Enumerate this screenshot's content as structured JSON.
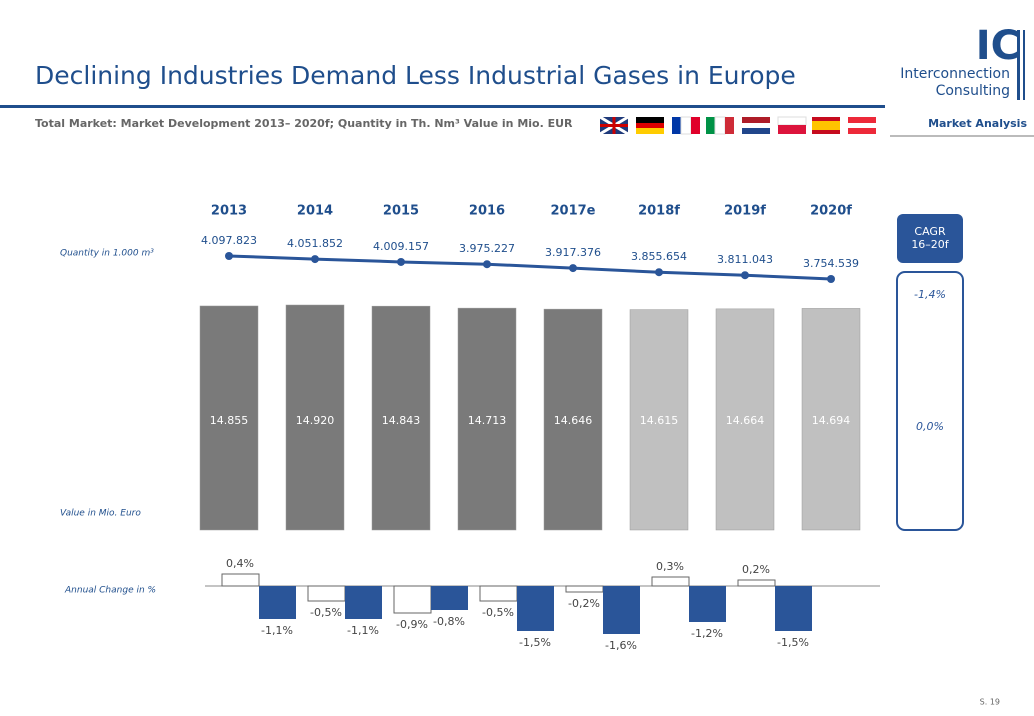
{
  "header": {
    "title": "Declining Industries Demand Less Industrial Gases in Europe",
    "subtitle": "Total Market: Market Development 2013– 2020f; Quantity in Th. Nm³ Value in Mio. EUR",
    "section": "Market Analysis",
    "logo": [
      "IC",
      "Interconnection",
      "Consulting"
    ]
  },
  "chart_data": [
    {
      "type": "combo",
      "categories": [
        "2013",
        "2014",
        "2015",
        "2016",
        "2017e",
        "2018f",
        "2019f",
        "2020f"
      ],
      "series": [
        {
          "name": "Quantity in 1.000 m³",
          "type": "line",
          "color": "#2a5599",
          "values": [
            4097823,
            4051852,
            4009157,
            3975227,
            3917376,
            3855654,
            3811043,
            3754539
          ],
          "value_labels": [
            "4.097.823",
            "4.051.852",
            "4.009.157",
            "3.975.227",
            "3.917.376",
            "3.855.654",
            "3.811.043",
            "3.754.539"
          ]
        },
        {
          "name": "Value in Mio. Euro",
          "type": "bar",
          "colors": [
            "#7a7a7a",
            "#7a7a7a",
            "#7a7a7a",
            "#7a7a7a",
            "#7a7a7a",
            "#c0c0c0",
            "#c0c0c0",
            "#c0c0c0"
          ],
          "values": [
            14855,
            14920,
            14843,
            14713,
            14646,
            14615,
            14664,
            14694
          ],
          "value_labels": [
            "14.855",
            "14.920",
            "14.843",
            "14.713",
            "14.646",
            "14.615",
            "14.664",
            "14.694"
          ]
        }
      ],
      "cagr": {
        "label": [
          "CAGR",
          "16–20f"
        ],
        "values": [
          -1.4,
          0.0
        ],
        "value_labels": [
          "-1,4%",
          "0,0%"
        ]
      }
    },
    {
      "type": "bar",
      "ylabel": "Annual Change in %",
      "series": [
        {
          "color": "#ffffff",
          "values": [
            0.4,
            -0.5,
            -0.9,
            -0.5,
            -0.2,
            0.3,
            0.2
          ],
          "value_labels": [
            "0,4%",
            "-0,5%",
            "-0,9%",
            "-0,5%",
            "-0,2%",
            "0,3%",
            "0,2%"
          ]
        },
        {
          "color": "#2a5599",
          "values": [
            -1.1,
            -1.1,
            -0.8,
            -1.5,
            -1.6,
            -1.2,
            -1.5
          ],
          "value_labels": [
            "-1,1%",
            "-1,1%",
            "-0,8%",
            "-1,5%",
            "-1,6%",
            "-1,2%",
            "-1,5%"
          ]
        }
      ]
    }
  ],
  "footer": {
    "page": "S. 19"
  }
}
